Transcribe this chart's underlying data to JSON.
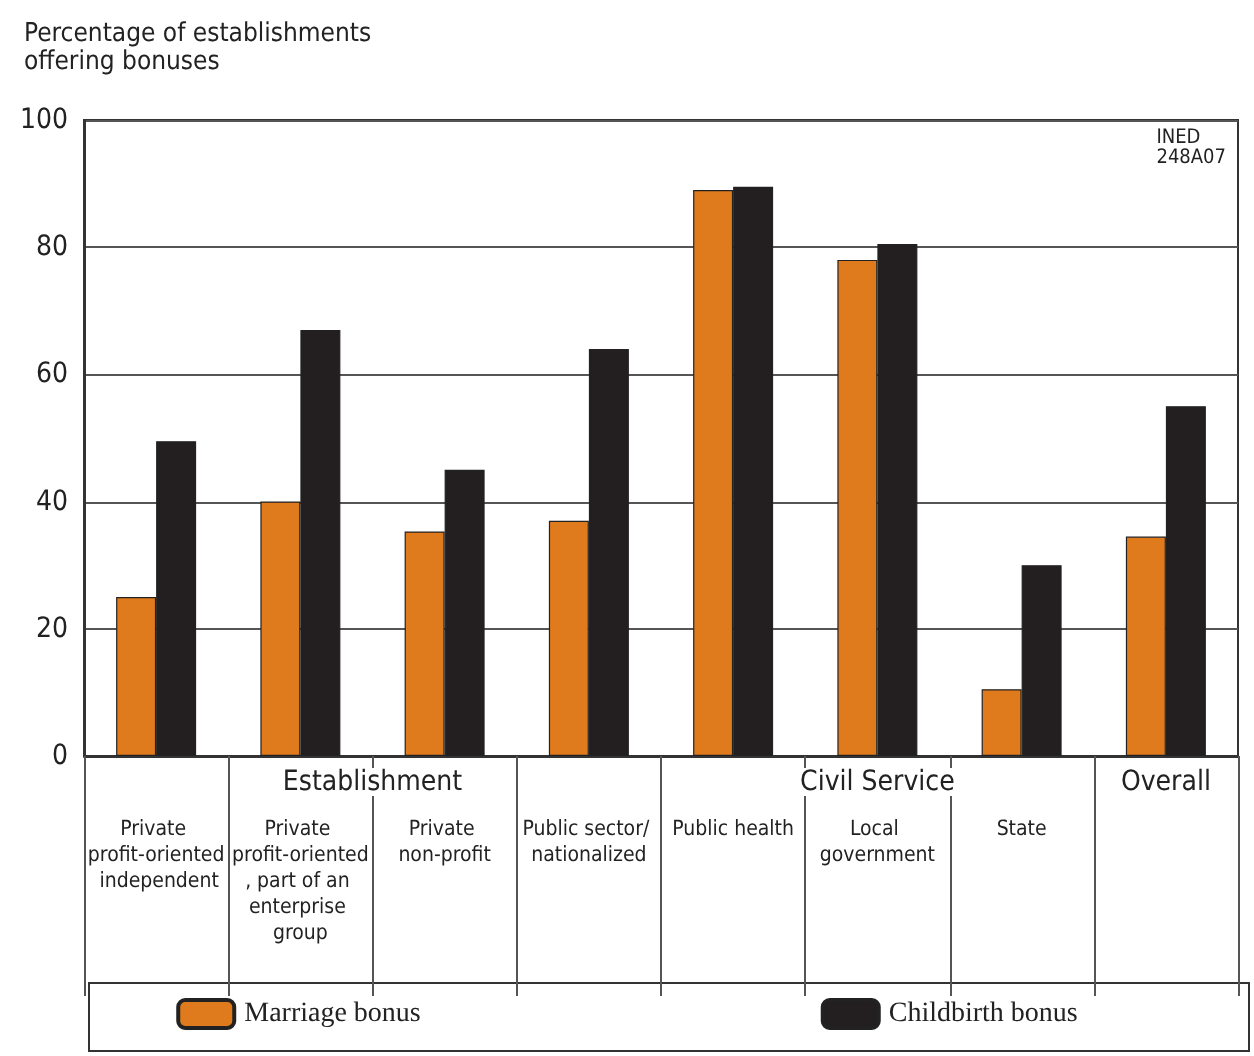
{
  "chart_data": {
    "type": "bar",
    "ylabel": "Percentage of establishments offering bonuses",
    "categories": [
      "Private profit-oriented independent",
      "Private profit-oriented, part of an enterprise group",
      "Private non-profit",
      "Public sector/ nationalized",
      "Public health",
      "Local government",
      "State",
      null
    ],
    "series": [
      {
        "name": "Marriage bonus",
        "color": "#e07b1d",
        "values": [
          25,
          40,
          35.3,
          37,
          89,
          78,
          10.5,
          34.5
        ]
      },
      {
        "name": "Childbirth bonus",
        "color": "#231f20",
        "values": [
          49.5,
          67,
          45,
          64,
          89.5,
          80.5,
          30,
          55
        ]
      }
    ],
    "ylim": [
      0,
      100
    ],
    "yticks": [
      0,
      20,
      40,
      60,
      80,
      100
    ],
    "grid": "y",
    "legend": "bottom",
    "annotations": [
      "Establishment",
      "Civil Service",
      "Overall",
      "INED 248A07"
    ]
  }
}
